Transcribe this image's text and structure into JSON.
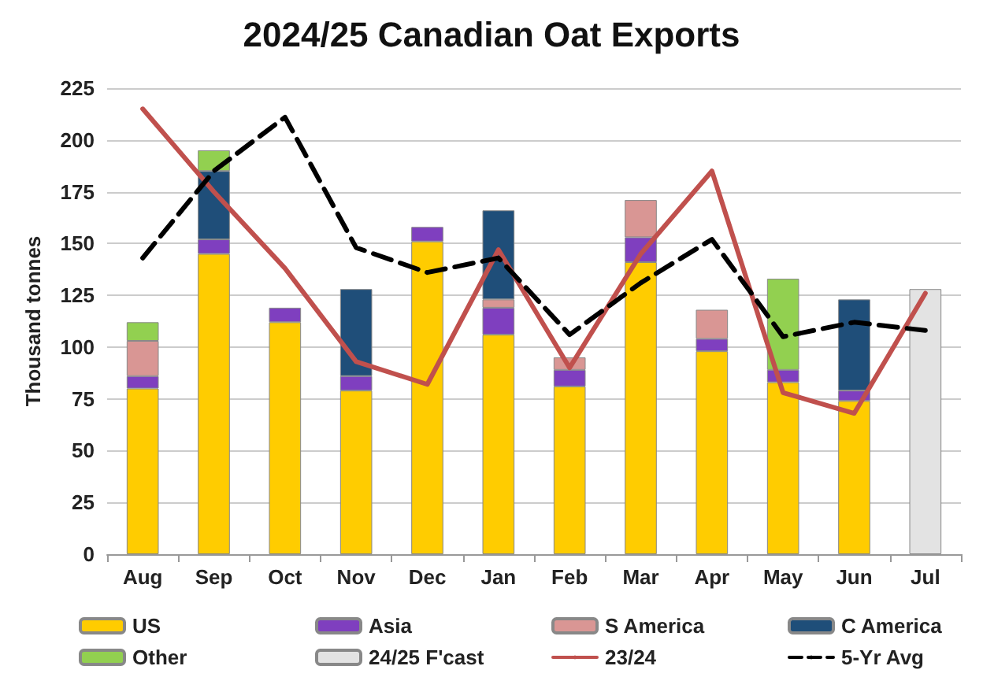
{
  "chart_data": {
    "type": "bar",
    "title": "2024/25 Canadian Oat Exports",
    "ylabel": "Thousand tonnes",
    "categories": [
      "Aug",
      "Sep",
      "Oct",
      "Nov",
      "Dec",
      "Jan",
      "Feb",
      "Mar",
      "Apr",
      "May",
      "Jun",
      "Jul"
    ],
    "stacked": true,
    "ylim": [
      0,
      225
    ],
    "yticks": [
      0,
      25,
      50,
      75,
      100,
      125,
      150,
      175,
      200,
      225
    ],
    "grid": "y",
    "legend": "bottom",
    "marker": "none",
    "series": [
      {
        "name": "US",
        "color": "#ffcc00",
        "values": [
          80,
          145,
          112,
          79,
          151,
          106,
          81,
          141,
          98,
          83,
          74,
          null
        ]
      },
      {
        "name": "Asia",
        "color": "#7f3fbf",
        "values": [
          6,
          7,
          7,
          7,
          7,
          13,
          8,
          12,
          6,
          6,
          5,
          null
        ]
      },
      {
        "name": "S America",
        "color": "#d99694",
        "values": [
          17,
          null,
          null,
          null,
          null,
          4,
          6,
          18,
          14,
          null,
          null,
          null
        ]
      },
      {
        "name": "C America",
        "color": "#1f4e79",
        "values": [
          null,
          33,
          null,
          42,
          null,
          43,
          null,
          null,
          null,
          null,
          44,
          null
        ]
      },
      {
        "name": "Other",
        "color": "#92d050",
        "values": [
          9,
          10,
          null,
          null,
          null,
          null,
          null,
          null,
          null,
          44,
          null,
          null
        ]
      },
      {
        "name": "24/25 F'cast",
        "color": "#e3e3e3",
        "values": [
          null,
          null,
          null,
          null,
          null,
          null,
          null,
          null,
          null,
          null,
          null,
          128
        ]
      },
      {
        "name": "23/24",
        "type": "line",
        "color": "#c0504d",
        "line_style": "solid",
        "values": [
          215,
          175,
          138,
          93,
          82,
          147,
          90,
          145,
          185,
          78,
          68,
          126
        ]
      },
      {
        "name": "5-Yr Avg",
        "type": "line",
        "color": "#000000",
        "line_style": "dashed",
        "values": [
          143,
          185,
          211,
          148,
          136,
          143,
          106,
          131,
          152,
          105,
          112,
          108
        ]
      }
    ]
  }
}
